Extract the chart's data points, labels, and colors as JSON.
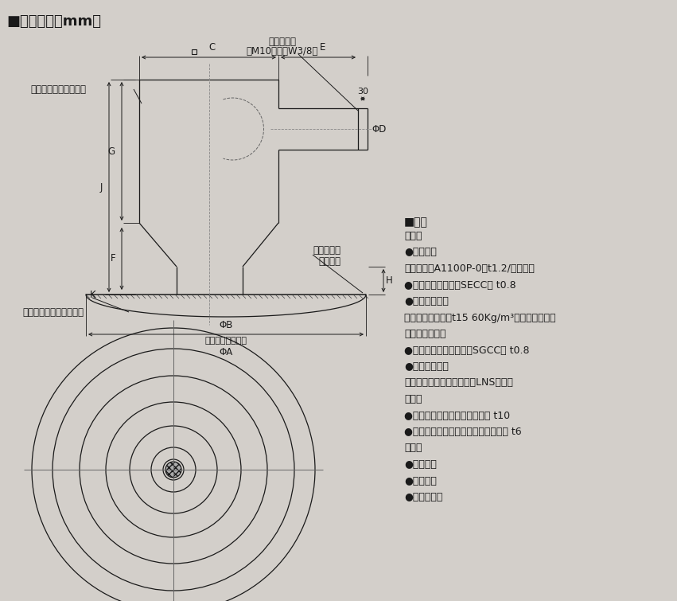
{
  "bg_color": "#d3cfca",
  "title": "■外形寸法（mm）",
  "spec_title": "■仕様",
  "spec_lines": [
    [
      "吹出口",
      true
    ],
    [
      "●吹出口：",
      false
    ],
    [
      "　アルミ（A1100P-0）t1.2/焼付塗装",
      false
    ],
    [
      "●ネック：鉱板製（SECC） t0.8",
      false
    ],
    [
      "●断熱カバー：",
      false
    ],
    [
      "　グラスウール（t15 60Kg/m³）外面植毛加工",
      false
    ],
    [
      "吹出チャンバー",
      true
    ],
    [
      "●ケーシング：鉱板製（SGCC） t0.8",
      false
    ],
    [
      "●シャッター：",
      false
    ],
    [
      "　ローノイズシャッター（LNS）布製",
      false
    ],
    [
      "断熱材",
      true
    ],
    [
      "●内面：ポリエチレンフォーム t10",
      false
    ],
    [
      "●外面：準不燃軟質ウレタンフォーム t6",
      false
    ],
    [
      "付属品",
      true
    ],
    [
      "●取付ねじ",
      false
    ],
    [
      "●蝶ナット",
      false
    ],
    [
      "●据付説明書",
      false
    ]
  ],
  "label_anemo_chamber": "アネモ吹出チャンバー",
  "label_anemo_outlet": "アネモ無結露丸形吹出口",
  "label_bolt": "吹ボルト穴",
  "label_bolt2": "（M10またはW3/8）",
  "label_insulation": "断熱カバー",
  "label_insulation2": "（黒色）",
  "dim_G": "G",
  "dim_J": "J",
  "dim_F": "F",
  "dim_K": "K",
  "dim_H": "H",
  "dim_C": "C",
  "dim_E": "E",
  "dim_D": "ΦD",
  "dim_A": "ΦA",
  "dim_B": "ΦB",
  "dim_B_sub": "（天井開口寸法）",
  "dim_30": "30"
}
